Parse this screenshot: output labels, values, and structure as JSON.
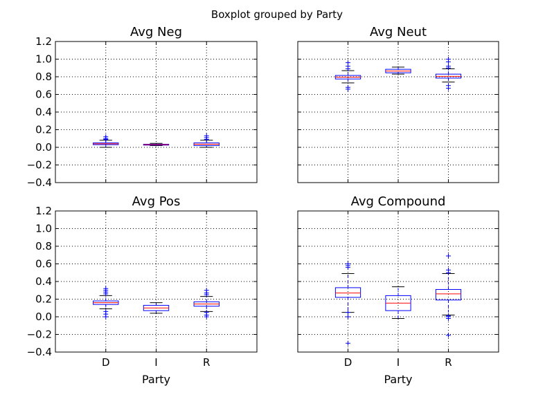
{
  "chart_data": {
    "type": "boxplot",
    "suptitle": "Boxplot grouped by Party",
    "categories": [
      "D",
      "I",
      "R"
    ],
    "xlabel": "Party",
    "ylim": [
      -0.4,
      1.2
    ],
    "yticks": [
      -0.4,
      -0.2,
      0.0,
      0.2,
      0.4,
      0.6,
      0.8,
      1.0,
      1.2
    ],
    "ytick_labels": [
      "−0.4",
      "−0.2",
      "0.0",
      "0.2",
      "0.4",
      "0.6",
      "0.8",
      "1.0",
      "1.2"
    ],
    "grid": true,
    "colors": {
      "box": "#0000ff",
      "median": "#ff0000",
      "grid": "#000000"
    },
    "panels": [
      {
        "title": "Avg Neg",
        "boxes": [
          {
            "category": "D",
            "whislo": 0.0,
            "q1": 0.03,
            "med": 0.04,
            "q3": 0.05,
            "whishi": 0.08,
            "fliers": [
              0.09,
              0.1,
              0.12
            ]
          },
          {
            "category": "I",
            "whislo": 0.02,
            "q1": 0.025,
            "med": 0.03,
            "q3": 0.035,
            "whishi": 0.045,
            "fliers": []
          },
          {
            "category": "R",
            "whislo": 0.0,
            "q1": 0.02,
            "med": 0.035,
            "q3": 0.05,
            "whishi": 0.08,
            "fliers": [
              0.09,
              0.11,
              0.13
            ]
          }
        ]
      },
      {
        "title": "Avg Neut",
        "boxes": [
          {
            "category": "D",
            "whislo": 0.73,
            "q1": 0.775,
            "med": 0.795,
            "q3": 0.815,
            "whishi": 0.87,
            "fliers": [
              0.66,
              0.68,
              0.89,
              0.92,
              0.96
            ]
          },
          {
            "category": "I",
            "whislo": 0.83,
            "q1": 0.845,
            "med": 0.865,
            "q3": 0.885,
            "whishi": 0.91,
            "fliers": []
          },
          {
            "category": "R",
            "whislo": 0.74,
            "q1": 0.785,
            "med": 0.805,
            "q3": 0.83,
            "whishi": 0.89,
            "fliers": [
              0.67,
              0.7,
              0.9,
              0.92,
              0.97,
              1.0
            ]
          }
        ]
      },
      {
        "title": "Avg Pos",
        "boxes": [
          {
            "category": "D",
            "whislo": 0.09,
            "q1": 0.14,
            "med": 0.16,
            "q3": 0.18,
            "whishi": 0.24,
            "fliers": [
              0.0,
              0.03,
              0.06,
              0.26,
              0.28,
              0.3,
              0.32
            ]
          },
          {
            "category": "I",
            "whislo": 0.04,
            "q1": 0.07,
            "med": 0.1,
            "q3": 0.13,
            "whishi": 0.16,
            "fliers": []
          },
          {
            "category": "R",
            "whislo": 0.06,
            "q1": 0.12,
            "med": 0.145,
            "q3": 0.17,
            "whishi": 0.23,
            "fliers": [
              0.0,
              0.02,
              0.05,
              0.25,
              0.27,
              0.3
            ]
          }
        ]
      },
      {
        "title": "Avg Compound",
        "boxes": [
          {
            "category": "D",
            "whislo": 0.05,
            "q1": 0.22,
            "med": 0.27,
            "q3": 0.33,
            "whishi": 0.49,
            "fliers": [
              -0.3,
              0.0,
              0.05,
              0.56,
              0.58,
              0.6
            ]
          },
          {
            "category": "I",
            "whislo": -0.02,
            "q1": 0.07,
            "med": 0.155,
            "q3": 0.24,
            "whishi": 0.34,
            "fliers": []
          },
          {
            "category": "R",
            "whislo": 0.02,
            "q1": 0.19,
            "med": 0.26,
            "q3": 0.31,
            "whishi": 0.49,
            "fliers": [
              -0.21,
              -0.02,
              0.0,
              0.01,
              0.5,
              0.53,
              0.69
            ]
          }
        ]
      }
    ]
  }
}
